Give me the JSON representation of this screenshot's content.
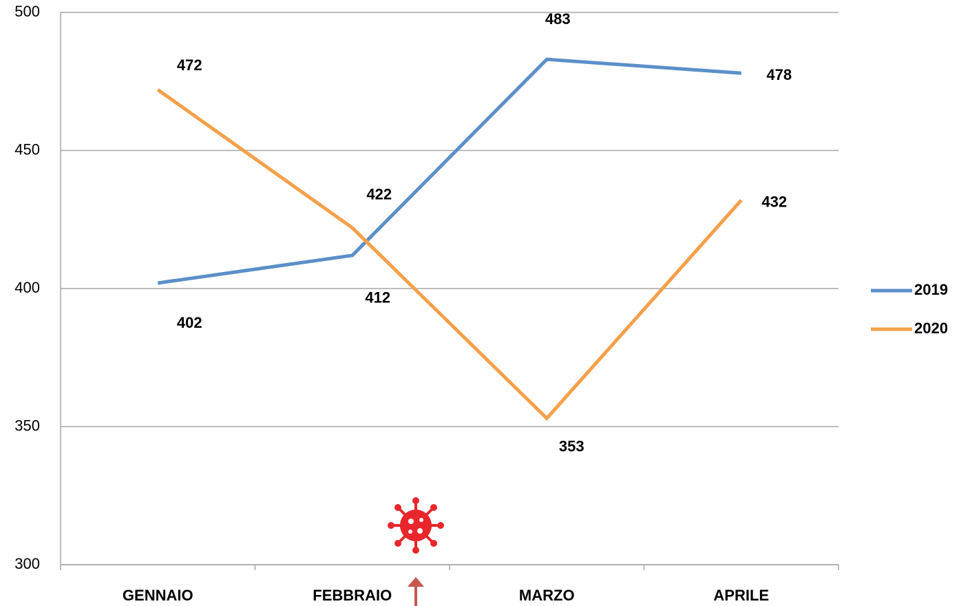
{
  "chart_data": {
    "type": "line",
    "categories": [
      "GENNAIO",
      "FEBBRAIO",
      "MARZO",
      "APRILE"
    ],
    "series": [
      {
        "name": "2019",
        "color": "#5b8fc9",
        "values": [
          402,
          412,
          483,
          478
        ]
      },
      {
        "name": "2020",
        "color": "#f5a04a",
        "values": [
          472,
          422,
          353,
          432
        ]
      }
    ],
    "ylim": [
      300,
      500
    ],
    "yticks": [
      300,
      350,
      400,
      450,
      500
    ],
    "grid": true,
    "legend": "right"
  }
}
